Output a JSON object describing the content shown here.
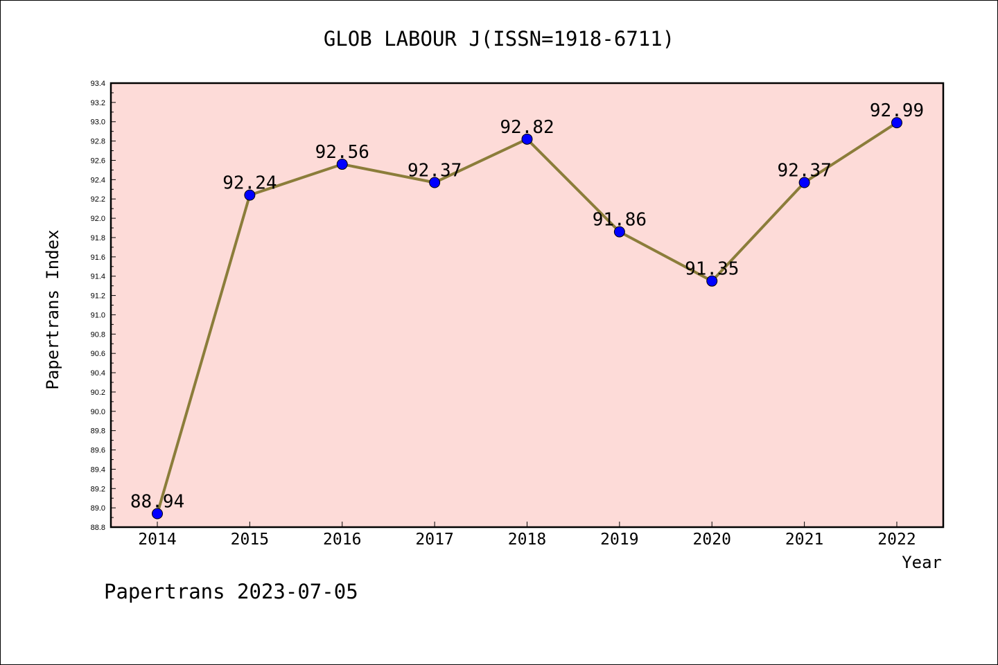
{
  "chart_data": {
    "type": "line",
    "title": "GLOB LABOUR J(ISSN=1918-6711)",
    "xlabel": "Year",
    "ylabel": "Papertrans Index",
    "x": [
      "2014",
      "2015",
      "2016",
      "2017",
      "2018",
      "2019",
      "2020",
      "2021",
      "2022"
    ],
    "values": [
      88.94,
      92.24,
      92.56,
      92.37,
      92.82,
      91.86,
      91.35,
      92.37,
      92.99
    ],
    "data_labels": [
      "88.94",
      "92.24",
      "92.56",
      "92.37",
      "92.82",
      "91.86",
      "91.35",
      "92.37",
      "92.99"
    ],
    "ylim": [
      88.8,
      93.4
    ],
    "yticks": [
      "88.8",
      "89.0",
      "89.2",
      "89.4",
      "89.6",
      "89.8",
      "90.0",
      "90.2",
      "90.4",
      "90.6",
      "90.8",
      "91.0",
      "91.2",
      "91.4",
      "91.6",
      "91.8",
      "92.0",
      "92.2",
      "92.4",
      "92.6",
      "92.8",
      "93.0",
      "93.2",
      "93.4"
    ],
    "grid": false,
    "colors": {
      "plot_background": "#fddbd8",
      "line": "#8b7d3a",
      "marker": "#0000ff"
    }
  },
  "footer": "Papertrans 2023-07-05"
}
